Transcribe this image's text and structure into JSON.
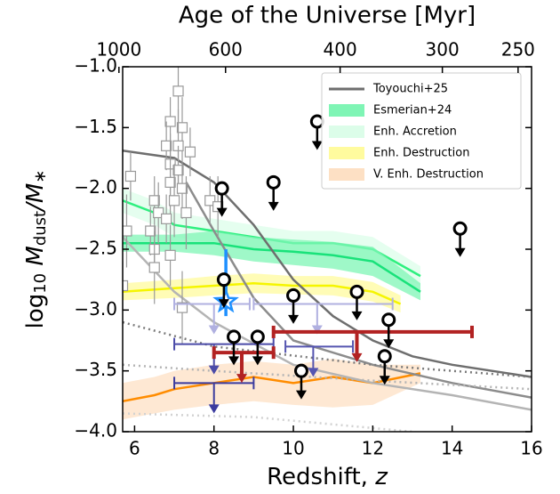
{
  "chart_data": {
    "type": "scatter",
    "x2label": "Age of the Universe [Myr]",
    "xlabel": [
      "Redshift, ",
      "z"
    ],
    "ylabel": [
      "log",
      "10",
      " M",
      "dust",
      "/M",
      "∗"
    ],
    "xlim": [
      5.7,
      16
    ],
    "ylim": [
      -4,
      -1
    ],
    "xticks": [
      6,
      8,
      10,
      12,
      14,
      16
    ],
    "yticks": [
      {
        "value": -4,
        "label": "−4.0"
      },
      {
        "value": -3.5,
        "label": "−3.5"
      },
      {
        "value": -3,
        "label": "−3.0"
      },
      {
        "value": -2.5,
        "label": "−2.5"
      },
      {
        "value": -2,
        "label": "−2.0"
      },
      {
        "value": -1.5,
        "label": "−1.5"
      },
      {
        "value": -1,
        "label": "−1.0"
      }
    ],
    "x2ticks": [
      1000,
      600,
      400,
      300,
      250
    ],
    "legend": [
      {
        "label": "Toyouchi+25",
        "color": "#6e6e6e",
        "kind": "line"
      },
      {
        "label": "Esmerian+24",
        "color": "#7ff5b5",
        "kind": "patch"
      },
      {
        "label": "Enh. Accretion",
        "color": "#dcfde9",
        "kind": "patch"
      },
      {
        "label": "Enh. Destruction",
        "color": "#fffb9e",
        "kind": "patch"
      },
      {
        "label": "V. Enh. Destruction",
        "color": "#fde0c4",
        "kind": "patch"
      }
    ],
    "bands": [
      {
        "x": [
          5.7,
          6.5,
          7,
          8,
          9,
          10,
          11,
          12,
          13.2
        ],
        "y": [
          -3.75,
          -3.7,
          -3.65,
          -3.6,
          -3.55,
          -3.6,
          -3.55,
          -3.6,
          -3.52
        ],
        "lower": [
          -3.9,
          -3.85,
          -3.82,
          -3.78,
          -3.75,
          -3.78,
          -3.8,
          -3.78,
          -3.6
        ],
        "upper": [
          -3.6,
          -3.55,
          -3.5,
          -3.45,
          -3.42,
          -3.45,
          -3.4,
          -3.45,
          -3.45
        ],
        "line_color": "#ff8c00",
        "fill": "#fde0c4"
      },
      {
        "x": [
          5.7,
          7,
          8,
          9,
          10,
          11,
          12,
          12.7
        ],
        "y": [
          -2.85,
          -2.82,
          -2.8,
          -2.78,
          -2.8,
          -2.8,
          -2.85,
          -2.95
        ],
        "lower": [
          -2.92,
          -2.9,
          -2.88,
          -2.86,
          -2.87,
          -2.88,
          -2.93,
          -3.02
        ],
        "upper": [
          -2.78,
          -2.75,
          -2.72,
          -2.7,
          -2.72,
          -2.72,
          -2.77,
          -2.88
        ],
        "line_color": "#f5f500",
        "fill": "#fffb9e"
      },
      {
        "x": [
          5.7,
          6.5,
          7,
          8,
          9,
          10,
          11,
          12,
          13.2
        ],
        "y": [
          -2.1,
          -2.2,
          -2.3,
          -2.35,
          -2.4,
          -2.45,
          -2.45,
          -2.5,
          -2.72
        ],
        "lower": [
          -2.2,
          -2.3,
          -2.4,
          -2.45,
          -2.5,
          -2.55,
          -2.55,
          -2.6,
          -2.8
        ],
        "upper": [
          -2.0,
          -2.1,
          -2.2,
          -2.25,
          -2.3,
          -2.35,
          -2.35,
          -2.4,
          -2.64
        ],
        "line_color": "#2ef07f",
        "fill": "#dcfde9"
      },
      {
        "x": [
          5.7,
          7,
          8,
          9,
          10,
          11,
          12,
          13.2
        ],
        "y": [
          -2.45,
          -2.45,
          -2.45,
          -2.5,
          -2.52,
          -2.55,
          -2.6,
          -2.85
        ],
        "lower": [
          -2.52,
          -2.52,
          -2.55,
          -2.6,
          -2.63,
          -2.66,
          -2.72,
          -2.92
        ],
        "upper": [
          -2.38,
          -2.38,
          -2.35,
          -2.4,
          -2.42,
          -2.44,
          -2.48,
          -2.78
        ],
        "line_color": "#19e27a",
        "fill": "#7ff5b5"
      }
    ],
    "curves": [
      {
        "x": [
          5.7,
          7,
          8,
          9,
          10,
          11,
          12,
          13,
          14,
          16
        ],
        "y": [
          -1.69,
          -1.75,
          -1.95,
          -2.3,
          -2.75,
          -3.05,
          -3.25,
          -3.38,
          -3.45,
          -3.55
        ],
        "color": "#6e6e6e",
        "dash": false
      },
      {
        "x": [
          7.3,
          8,
          9,
          10,
          12,
          14,
          16
        ],
        "y": [
          -1.95,
          -2.35,
          -2.9,
          -3.25,
          -3.45,
          -3.6,
          -3.72
        ],
        "color": "#8c8c8c",
        "dash": false
      },
      {
        "x": [
          5.7,
          7,
          8,
          10,
          12,
          14,
          16
        ],
        "y": [
          -2.4,
          -2.85,
          -3.1,
          -3.45,
          -3.6,
          -3.7,
          -3.82
        ],
        "color": "#b4b4b4",
        "dash": false
      },
      {
        "x": [
          5.7,
          8,
          12,
          16
        ],
        "y": [
          -3.1,
          -3.3,
          -3.45,
          -3.55
        ],
        "color": "#7a7a7a",
        "dash": true
      },
      {
        "x": [
          5.7,
          8,
          12,
          16
        ],
        "y": [
          -3.45,
          -3.5,
          -3.58,
          -3.65
        ],
        "color": "#b4b4b4",
        "dash": true
      },
      {
        "x": [
          5.7,
          9,
          13,
          16
        ],
        "y": [
          -3.85,
          -3.88,
          -4.0,
          -4.2
        ],
        "color": "#d2d2d2",
        "dash": true
      }
    ],
    "squares": {
      "x": [
        7.1,
        6.9,
        7.2,
        6.8,
        7.1,
        7.4,
        6.9,
        7.1,
        6.9,
        7.2,
        6.5,
        7.0,
        6.6,
        6.8,
        7.3,
        6.4,
        5.8,
        6.5,
        6.9,
        6.5,
        7.9,
        8.1,
        5.7,
        7.2,
        5.9
      ],
      "y": [
        -1.2,
        -1.45,
        -1.5,
        -1.65,
        -1.65,
        -1.7,
        -1.8,
        -1.85,
        -1.95,
        -2.0,
        -2.1,
        -2.1,
        -2.2,
        -2.25,
        -2.2,
        -2.35,
        -2.35,
        -2.5,
        -2.55,
        -2.65,
        -2.1,
        -2.15,
        -2.8,
        -2.98,
        -1.9
      ],
      "yerr": [
        0.3,
        0.2,
        0.25,
        0.2,
        0.3,
        0.2,
        0.25,
        0.2,
        0.3,
        0.25,
        0.2,
        0.3,
        0.25,
        0.2,
        0.3,
        0.2,
        0.3,
        0.2,
        0.25,
        0.3,
        0.2,
        0.25,
        0.2,
        0.3,
        0.2
      ],
      "color": "#999999"
    },
    "limits": {
      "x": [
        8.2,
        9.5,
        10.6,
        14.2,
        8.25,
        10.0,
        11.6,
        12.4,
        8.5,
        9.1,
        10.2,
        12.3
      ],
      "y": [
        -2.0,
        -1.95,
        -1.45,
        -2.33,
        -2.75,
        -2.88,
        -2.85,
        -3.08,
        -3.22,
        -3.22,
        -3.5,
        -3.38
      ],
      "color": "#000000"
    },
    "star": {
      "x": 8.3,
      "y": -2.93,
      "ylow": -3.05,
      "yhigh": -2.5,
      "color": "#1e90ff"
    },
    "limit_bars": [
      {
        "x": 8.0,
        "y": -2.95,
        "xmin": 7.0,
        "xmax": 8.9,
        "color": "#b0b0e0"
      },
      {
        "x": 10.6,
        "y": -2.95,
        "xmin": 9.0,
        "xmax": 12.5,
        "color": "#b0b0e0"
      },
      {
        "x": 8.0,
        "y": -3.28,
        "xmin": 7.0,
        "xmax": 9.5,
        "color": "#4a4aa8"
      },
      {
        "x": 10.5,
        "y": -3.3,
        "xmin": 9.8,
        "xmax": 11.5,
        "color": "#5555b0"
      },
      {
        "x": 8.0,
        "y": -3.6,
        "xmin": 7.0,
        "xmax": 9.0,
        "color": "#3b3b9e"
      },
      {
        "x": 8.7,
        "y": -3.35,
        "xmin": 8.0,
        "xmax": 9.5,
        "color": "#b22222"
      },
      {
        "x": 11.6,
        "y": -3.18,
        "xmin": 9.5,
        "xmax": 14.5,
        "color": "#b22222"
      }
    ]
  }
}
